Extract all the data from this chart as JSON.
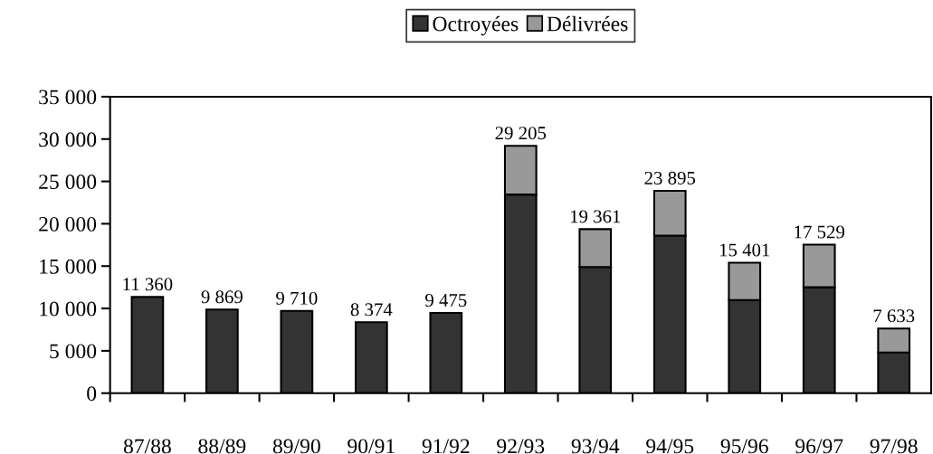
{
  "chart_data": {
    "type": "bar",
    "stacked": true,
    "categories": [
      "87/88",
      "88/89",
      "89/90",
      "90/91",
      "91/92",
      "92/93",
      "93/94",
      "94/95",
      "95/96",
      "96/97",
      "97/98"
    ],
    "series": [
      {
        "name": "Octroyées",
        "color": "#333333",
        "values": [
          11360,
          9869,
          9710,
          8374,
          9475,
          23450,
          14900,
          18600,
          11000,
          12500,
          4800
        ]
      },
      {
        "name": "Délivrées",
        "color": "#999999",
        "values": [
          null,
          null,
          null,
          null,
          null,
          5755,
          4461,
          5295,
          4401,
          5029,
          2833
        ]
      }
    ],
    "totals": [
      "11 360",
      "9 869",
      "9 710",
      "8 374",
      "9 475",
      "29 205",
      "19 361",
      "23 895",
      "15 401",
      "17 529",
      "7 633"
    ],
    "ylim": [
      0,
      35000
    ],
    "yticks": [
      {
        "value": 0,
        "label": "0"
      },
      {
        "value": 5000,
        "label": "5 000"
      },
      {
        "value": 10000,
        "label": "10 000"
      },
      {
        "value": 15000,
        "label": "15 000"
      },
      {
        "value": 20000,
        "label": "20 000"
      },
      {
        "value": 25000,
        "label": "25 000"
      },
      {
        "value": 30000,
        "label": "30 000"
      },
      {
        "value": 35000,
        "label": "35 000"
      }
    ],
    "grid": false,
    "legend": "top"
  }
}
